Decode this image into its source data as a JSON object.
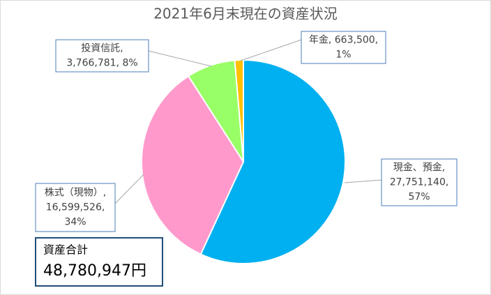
{
  "chart_data": {
    "type": "pie",
    "title": "2021年6月末現在の資産状況",
    "values": [
      27751140,
      16599526,
      3766781,
      663500
    ],
    "colors": [
      "#00b0f0",
      "#ff99cc",
      "#99ff66",
      "#ffc000"
    ],
    "data_labels": [
      [
        "現金、預金,",
        "27,751,140,",
        "57%"
      ],
      [
        "株式（現物）,",
        "16,599,526,",
        "34%"
      ],
      [
        "投資信託,",
        "3,766,781, 8%"
      ],
      [
        "年金, 663,500,",
        "1%"
      ]
    ],
    "total": {
      "label": "資産合計",
      "value_label": "48,780,947円"
    }
  }
}
